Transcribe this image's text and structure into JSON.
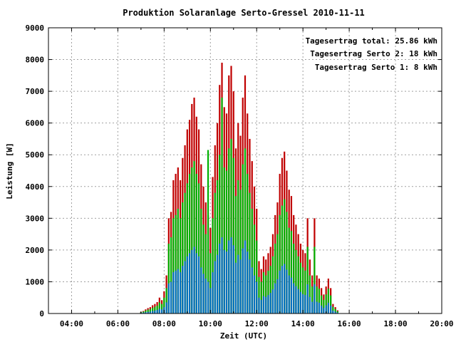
{
  "chart_data": {
    "type": "bar",
    "title": "Produktion Solaranlage Serto-Gressel 2010-11-11",
    "xlabel": "Zeit (UTC)",
    "ylabel": "Leistung [W]",
    "xlim": [
      3.0,
      20.0
    ],
    "ylim": [
      0,
      9000
    ],
    "x_ticks": [
      {
        "value": 4,
        "label": "04:00"
      },
      {
        "value": 6,
        "label": "06:00"
      },
      {
        "value": 8,
        "label": "08:00"
      },
      {
        "value": 10,
        "label": "10:00"
      },
      {
        "value": 12,
        "label": "12:00"
      },
      {
        "value": 14,
        "label": "14:00"
      },
      {
        "value": 16,
        "label": "16:00"
      },
      {
        "value": 18,
        "label": "18:00"
      },
      {
        "value": 20,
        "label": "20:00"
      }
    ],
    "y_ticks": [
      0,
      1000,
      2000,
      3000,
      4000,
      5000,
      6000,
      7000,
      8000,
      9000
    ],
    "grid": true,
    "legend_position": "top-right",
    "legend": [
      {
        "label": "Tagesertrag total: 25.86 kWh",
        "color": "#c00000"
      },
      {
        "label": "Tagesertrag Serto 2: 18 kWh",
        "color": "#00b000"
      },
      {
        "label": "Tagesertrag Serto 1: 8 kWh",
        "color": "#0070c0"
      }
    ],
    "x": [
      7.0,
      7.1,
      7.2,
      7.3,
      7.4,
      7.5,
      7.6,
      7.7,
      7.8,
      7.9,
      8.0,
      8.1,
      8.2,
      8.3,
      8.4,
      8.5,
      8.6,
      8.7,
      8.8,
      8.9,
      9.0,
      9.1,
      9.2,
      9.3,
      9.4,
      9.5,
      9.6,
      9.7,
      9.8,
      9.9,
      10.0,
      10.1,
      10.2,
      10.3,
      10.4,
      10.5,
      10.6,
      10.7,
      10.8,
      10.9,
      11.0,
      11.1,
      11.2,
      11.3,
      11.4,
      11.5,
      11.6,
      11.7,
      11.8,
      11.9,
      12.0,
      12.1,
      12.2,
      12.3,
      12.4,
      12.5,
      12.6,
      12.7,
      12.8,
      12.9,
      13.0,
      13.1,
      13.2,
      13.3,
      13.4,
      13.5,
      13.6,
      13.7,
      13.8,
      13.9,
      14.0,
      14.1,
      14.2,
      14.3,
      14.4,
      14.5,
      14.6,
      14.7,
      14.8,
      14.9,
      15.0,
      15.1,
      15.2,
      15.3,
      15.4,
      15.5
    ],
    "series": [
      {
        "name": "Tagesertrag total: 25.86 kWh",
        "values": [
          50,
          80,
          130,
          170,
          200,
          260,
          300,
          360,
          500,
          420,
          700,
          1200,
          3000,
          3200,
          4200,
          4400,
          4600,
          4200,
          4900,
          5300,
          5800,
          6100,
          6600,
          6800,
          6200,
          5800,
          4700,
          4000,
          3500,
          3100,
          2700,
          4300,
          5300,
          6000,
          7200,
          7900,
          6500,
          6300,
          7500,
          7800,
          7000,
          5200,
          6000,
          5600,
          6800,
          7500,
          6300,
          5500,
          4800,
          4000,
          3300,
          1650,
          1400,
          1800,
          1700,
          1900,
          2100,
          2500,
          3100,
          3500,
          4400,
          4900,
          5100,
          4500,
          3900,
          3700,
          3100,
          2800,
          2500,
          2200,
          2000,
          1900,
          3000,
          1700,
          1200,
          3000,
          1200,
          1100,
          800,
          600,
          850,
          1100,
          800,
          300,
          200,
          100
        ]
      },
      {
        "name": "Tagesertrag Serto 2: 18 kWh",
        "values": [
          40,
          60,
          90,
          120,
          140,
          180,
          210,
          250,
          350,
          300,
          500,
          800,
          2200,
          2400,
          3000,
          3100,
          3300,
          3000,
          3500,
          3800,
          4100,
          4400,
          4600,
          4800,
          4400,
          4100,
          3300,
          2800,
          2500,
          5150,
          1900,
          3000,
          3800,
          4200,
          5000,
          6800,
          4600,
          4500,
          5200,
          5500,
          4900,
          3700,
          4200,
          3900,
          4700,
          5200,
          4400,
          3800,
          3300,
          2800,
          2300,
          1150,
          1000,
          1300,
          1200,
          1350,
          1500,
          1800,
          2200,
          2500,
          3100,
          3400,
          3600,
          3200,
          2700,
          2600,
          2200,
          2000,
          1800,
          1600,
          1450,
          1350,
          2100,
          1200,
          850,
          2100,
          850,
          780,
          570,
          430,
          600,
          780,
          570,
          210,
          140,
          70
        ]
      },
      {
        "name": "Tagesertrag Serto 1: 8 kWh",
        "values": [
          20,
          30,
          40,
          50,
          60,
          80,
          90,
          110,
          150,
          130,
          200,
          350,
          950,
          1000,
          1300,
          1350,
          1400,
          1300,
          1500,
          1650,
          1800,
          1900,
          2000,
          2100,
          1900,
          1800,
          1450,
          1250,
          1100,
          1000,
          800,
          1300,
          1650,
          1850,
          2200,
          2400,
          2000,
          1950,
          2300,
          2400,
          2150,
          1600,
          1850,
          1700,
          2050,
          2300,
          1950,
          1700,
          1450,
          1200,
          1000,
          500,
          430,
          550,
          520,
          580,
          650,
          760,
          950,
          1080,
          1350,
          1500,
          1560,
          1380,
          1200,
          1130,
          950,
          860,
          770,
          680,
          610,
          580,
          920,
          520,
          370,
          920,
          370,
          340,
          250,
          180,
          260,
          340,
          250,
          90,
          60,
          30
        ]
      }
    ]
  }
}
